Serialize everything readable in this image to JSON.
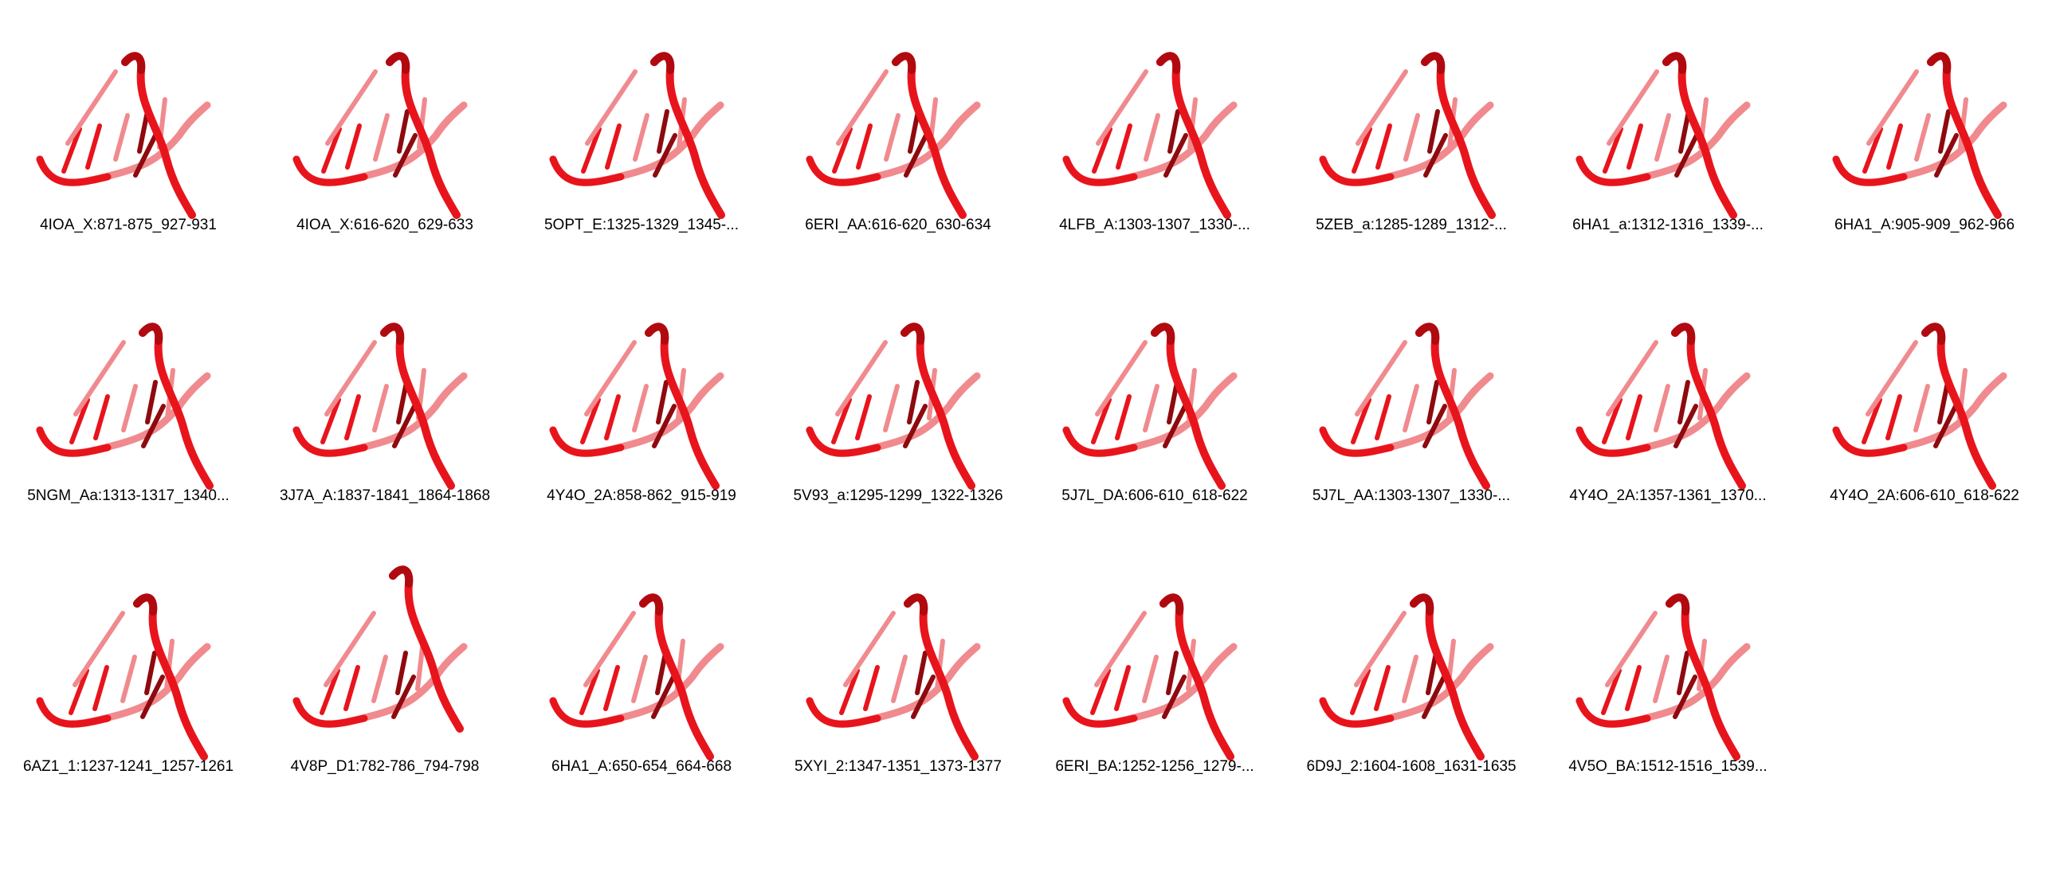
{
  "structures": [
    {
      "label": "4IOA_X:871-875_927-931"
    },
    {
      "label": "4IOA_X:616-620_629-633"
    },
    {
      "label": "5OPT_E:1325-1329_1345-..."
    },
    {
      "label": "6ERI_AA:616-620_630-634"
    },
    {
      "label": "4LFB_A:1303-1307_1330-..."
    },
    {
      "label": "5ZEB_a:1285-1289_1312-..."
    },
    {
      "label": "6HA1_a:1312-1316_1339-..."
    },
    {
      "label": "6HA1_A:905-909_962-966"
    },
    {
      "label": "5NGM_Aa:1313-1317_1340..."
    },
    {
      "label": "3J7A_A:1837-1841_1864-1868"
    },
    {
      "label": "4Y4O_2A:858-862_915-919"
    },
    {
      "label": "5V93_a:1295-1299_1322-1326"
    },
    {
      "label": "5J7L_DA:606-610_618-622"
    },
    {
      "label": "5J7L_AA:1303-1307_1330-..."
    },
    {
      "label": "4Y4O_2A:1357-1361_1370..."
    },
    {
      "label": "4Y4O_2A:606-610_618-622"
    },
    {
      "label": "6AZ1_1:1237-1241_1257-1261"
    },
    {
      "label": "4V8P_D1:782-786_794-798"
    },
    {
      "label": "6HA1_A:650-654_664-668"
    },
    {
      "label": "5XYI_2:1347-1351_1373-1377"
    },
    {
      "label": "6ERI_BA:1252-1256_1279-..."
    },
    {
      "label": "6D9J_2:1604-1608_1631-1635"
    },
    {
      "label": "4V5O_BA:1512-1516_1539..."
    }
  ],
  "colors": {
    "strand_main": "#e8141c",
    "strand_dark": "#b00a10",
    "strand_light": "#f08a8e",
    "rung_dark": "#8e0a0e"
  }
}
